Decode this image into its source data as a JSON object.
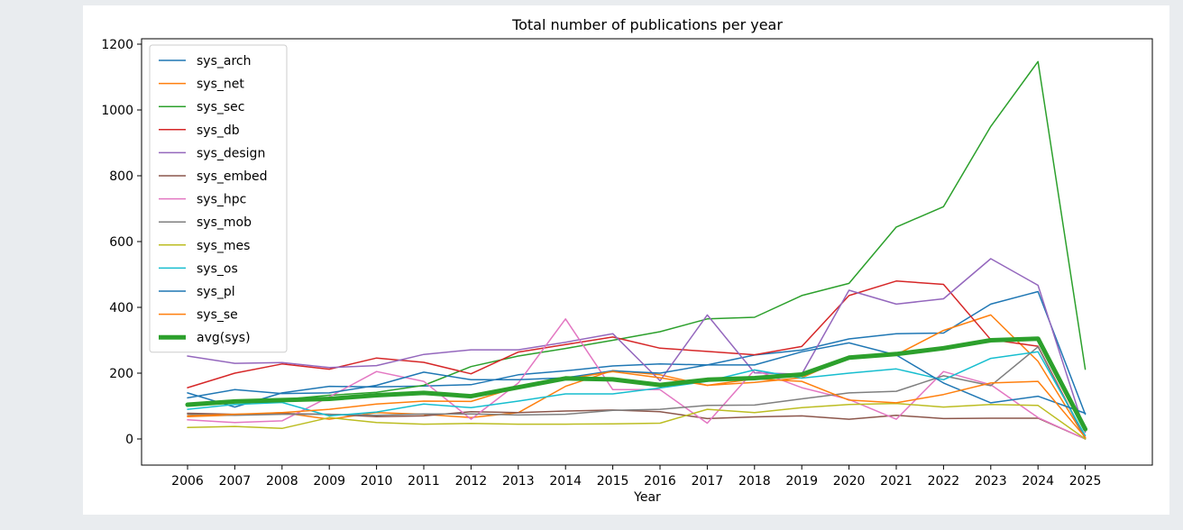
{
  "chart_data": {
    "type": "line",
    "title": "Total number of publications per year",
    "xlabel": "Year",
    "ylabel": "",
    "ylim": [
      -55,
      1200
    ],
    "yticks": [
      0,
      200,
      400,
      600,
      800,
      1000,
      1200
    ],
    "x": [
      "2006",
      "2007",
      "2008",
      "2009",
      "2010",
      "2011",
      "2012",
      "2013",
      "2014",
      "2015",
      "2016",
      "2017",
      "2018",
      "2019",
      "2020",
      "2021",
      "2022",
      "2023",
      "2024",
      "2025"
    ],
    "legend_position": "upper-left",
    "grid": false,
    "series": [
      {
        "name": "sys_arch",
        "color": "#1f77b4",
        "width": 1.5,
        "values": [
          140,
          97,
          140,
          160,
          158,
          161,
          165,
          195,
          207,
          222,
          228,
          225,
          255,
          270,
          304,
          320,
          322,
          410,
          448,
          75
        ]
      },
      {
        "name": "sys_net",
        "color": "#ff7f0e",
        "width": 1.5,
        "values": [
          68,
          73,
          80,
          60,
          80,
          75,
          65,
          80,
          160,
          208,
          195,
          163,
          172,
          186,
          250,
          256,
          330,
          377,
          236,
          3
        ]
      },
      {
        "name": "sys_sec",
        "color": "#2ca02c",
        "width": 1.5,
        "values": [
          105,
          112,
          120,
          133,
          142,
          163,
          220,
          252,
          275,
          300,
          326,
          365,
          370,
          436,
          473,
          644,
          706,
          950,
          1147,
          212
        ]
      },
      {
        "name": "sys_db",
        "color": "#d62728",
        "width": 1.5,
        "values": [
          156,
          200,
          228,
          212,
          246,
          233,
          198,
          264,
          287,
          310,
          276,
          266,
          256,
          281,
          436,
          480,
          470,
          302,
          282,
          3
        ]
      },
      {
        "name": "sys_design",
        "color": "#9467bd",
        "width": 1.5,
        "values": [
          252,
          230,
          232,
          217,
          223,
          257,
          271,
          271,
          294,
          320,
          177,
          377,
          201,
          197,
          452,
          410,
          426,
          548,
          467,
          20
        ]
      },
      {
        "name": "sys_embed",
        "color": "#8c564b",
        "width": 1.5,
        "values": [
          78,
          75,
          77,
          75,
          68,
          70,
          83,
          80,
          85,
          88,
          83,
          62,
          67,
          70,
          60,
          72,
          62,
          63,
          63,
          0
        ]
      },
      {
        "name": "sys_hpc",
        "color": "#e377c2",
        "width": 1.5,
        "values": [
          58,
          50,
          55,
          128,
          205,
          175,
          60,
          170,
          365,
          150,
          150,
          48,
          210,
          156,
          120,
          60,
          205,
          165,
          65,
          0
        ]
      },
      {
        "name": "sys_mob",
        "color": "#7f7f7f",
        "width": 1.5,
        "values": [
          75,
          72,
          75,
          75,
          72,
          76,
          76,
          73,
          75,
          87,
          90,
          102,
          103,
          122,
          140,
          145,
          192,
          162,
          280,
          0
        ]
      },
      {
        "name": "sys_mes",
        "color": "#bcbd22",
        "width": 1.5,
        "values": [
          35,
          38,
          32,
          65,
          50,
          45,
          47,
          45,
          45,
          46,
          48,
          90,
          80,
          95,
          105,
          108,
          97,
          105,
          102,
          0
        ]
      },
      {
        "name": "sys_os",
        "color": "#17becf",
        "width": 1.5,
        "values": [
          90,
          105,
          111,
          70,
          82,
          106,
          95,
          115,
          137,
          137,
          155,
          175,
          210,
          185,
          200,
          213,
          180,
          245,
          265,
          10
        ]
      },
      {
        "name": "sys_pl",
        "color": "#1f77b4",
        "width": 1.5,
        "values": [
          125,
          150,
          138,
          140,
          163,
          203,
          180,
          180,
          186,
          207,
          200,
          225,
          225,
          265,
          292,
          255,
          170,
          110,
          130,
          78
        ]
      },
      {
        "name": "sys_se",
        "color": "#ff7f0e",
        "width": 1.5,
        "values": [
          70,
          75,
          80,
          90,
          106,
          115,
          114,
          158,
          182,
          205,
          186,
          163,
          183,
          175,
          118,
          110,
          135,
          170,
          175,
          5
        ]
      },
      {
        "name": "avg(sys)",
        "color": "#2ca02c",
        "width": 5,
        "values": [
          104,
          114,
          118,
          122,
          133,
          140,
          130,
          157,
          184,
          181,
          164,
          180,
          185,
          196,
          247,
          258,
          276,
          300,
          305,
          30
        ]
      }
    ]
  }
}
